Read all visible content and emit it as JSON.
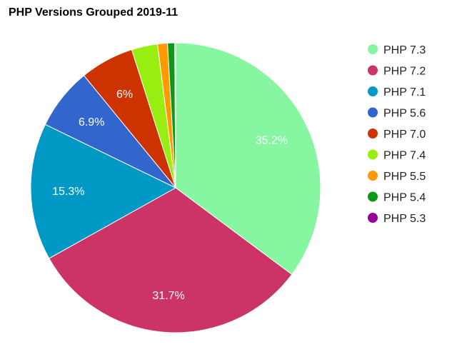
{
  "chart_data": {
    "type": "pie",
    "title": "PHP Versions Grouped 2019-11",
    "legend_position": "right",
    "slices": [
      {
        "label": "PHP 7.3",
        "value": 35.2,
        "color": "#86f7a0",
        "data_label": "35.2%"
      },
      {
        "label": "PHP 7.2",
        "value": 31.7,
        "color": "#cc3366",
        "data_label": "31.7%"
      },
      {
        "label": "PHP 7.1",
        "value": 15.3,
        "color": "#0099c6",
        "data_label": "15.3%"
      },
      {
        "label": "PHP 5.6",
        "value": 6.9,
        "color": "#3366cc",
        "data_label": "6.9%"
      },
      {
        "label": "PHP 7.0",
        "value": 6.0,
        "color": "#cc3300",
        "data_label": "6%"
      },
      {
        "label": "PHP 7.4",
        "value": 2.9,
        "color": "#99ee11",
        "data_label": ""
      },
      {
        "label": "PHP 5.5",
        "value": 1.1,
        "color": "#ff9900",
        "data_label": ""
      },
      {
        "label": "PHP 5.4",
        "value": 0.8,
        "color": "#109618",
        "data_label": ""
      },
      {
        "label": "PHP 5.3",
        "value": 0.1,
        "color": "#990099",
        "data_label": ""
      }
    ]
  }
}
